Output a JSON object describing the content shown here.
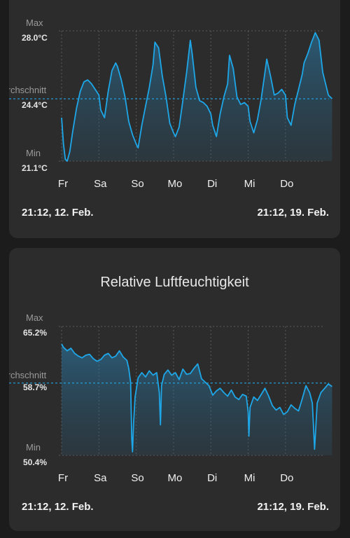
{
  "cards": {
    "temp": {
      "title": "",
      "max_label": "Max",
      "avg_label": "Durchschnitt",
      "min_label": "Min",
      "max_value": "28.0°C",
      "avg_value": "24.4°C",
      "min_value": "21.1°C",
      "start_time": "21:12,  12. Feb.",
      "end_time": "21:12,  19. Feb."
    },
    "hum": {
      "title": "Relative Luftfeuchtigkeit",
      "max_label": "Max",
      "avg_label": "Durchschnitt",
      "min_label": "Min",
      "max_value": "65.2%",
      "avg_value": "58.7%",
      "min_value": "50.4%",
      "start_time": "21:12,  12. Feb.",
      "end_time": "21:12,  19. Feb."
    }
  },
  "chart_data": [
    {
      "type": "area",
      "title": "",
      "unit": "°C",
      "x_ticks": [
        "Fr",
        "Sa",
        "So",
        "Mo",
        "Di",
        "Mi",
        "Do"
      ],
      "ylim": [
        21.1,
        28.0
      ],
      "max": 28.0,
      "avg": 24.4,
      "min": 21.1,
      "x_day": [
        0,
        0.05,
        0.1,
        0.15,
        0.22,
        0.3,
        0.4,
        0.5,
        0.6,
        0.7,
        0.8,
        0.9,
        1.0,
        1.05,
        1.15,
        1.25,
        1.35,
        1.45,
        1.5,
        1.6,
        1.7,
        1.8,
        1.9,
        2.0,
        2.05,
        2.15,
        2.25,
        2.35,
        2.45,
        2.5,
        2.6,
        2.7,
        2.8,
        2.9,
        3.0,
        3.05,
        3.15,
        3.25,
        3.35,
        3.45,
        3.5,
        3.6,
        3.7,
        3.8,
        3.9,
        4.0,
        4.05,
        4.15,
        4.25,
        4.35,
        4.45,
        4.5,
        4.6,
        4.7,
        4.8,
        4.9,
        5.0,
        5.05,
        5.15,
        5.25,
        5.35,
        5.45,
        5.5,
        5.6,
        5.7,
        5.8,
        5.9,
        6.0,
        6.05,
        6.15,
        6.25,
        6.35,
        6.45,
        6.5,
        6.6,
        6.7,
        6.8,
        6.9,
        7.0,
        7.15,
        7.25
      ],
      "y": [
        23.4,
        22.0,
        21.2,
        21.1,
        21.6,
        22.7,
        23.9,
        24.8,
        25.3,
        25.4,
        25.2,
        24.9,
        24.6,
        23.8,
        23.4,
        24.8,
        25.9,
        26.3,
        26.1,
        25.4,
        24.5,
        23.2,
        22.5,
        22.0,
        21.8,
        23.0,
        24.0,
        25.0,
        26.2,
        27.4,
        27.1,
        25.6,
        24.5,
        23.1,
        22.6,
        22.4,
        22.9,
        24.3,
        25.8,
        27.5,
        26.8,
        25.0,
        24.3,
        24.2,
        24.0,
        23.6,
        23.0,
        22.4,
        23.6,
        24.5,
        25.2,
        26.7,
        26.0,
        24.5,
        24.1,
        24.2,
        24.0,
        23.2,
        22.6,
        23.3,
        24.4,
        25.8,
        26.5,
        25.6,
        24.6,
        24.7,
        24.9,
        24.6,
        23.4,
        23.0,
        24.1,
        24.9,
        25.7,
        26.3,
        26.8,
        27.4,
        27.9,
        27.5,
        25.8,
        24.6,
        24.4
      ]
    },
    {
      "type": "area",
      "title": "Relative Luftfeuchtigkeit",
      "unit": "%",
      "x_ticks": [
        "Fr",
        "Sa",
        "So",
        "Mo",
        "Di",
        "Mi",
        "Do"
      ],
      "ylim": [
        50.4,
        65.2
      ],
      "max": 65.2,
      "avg": 58.7,
      "min": 50.4,
      "x_day": [
        0,
        0.05,
        0.15,
        0.25,
        0.35,
        0.45,
        0.55,
        0.65,
        0.75,
        0.85,
        0.95,
        1.05,
        1.15,
        1.25,
        1.35,
        1.45,
        1.55,
        1.65,
        1.75,
        1.8,
        1.85,
        1.88,
        1.9,
        1.93,
        1.97,
        2.05,
        2.15,
        2.25,
        2.35,
        2.45,
        2.55,
        2.62,
        2.65,
        2.68,
        2.75,
        2.85,
        2.95,
        3.05,
        3.15,
        3.25,
        3.35,
        3.45,
        3.55,
        3.65,
        3.75,
        3.85,
        3.95,
        4.05,
        4.15,
        4.25,
        4.35,
        4.45,
        4.55,
        4.65,
        4.75,
        4.85,
        4.95,
        5.0,
        5.02,
        5.05,
        5.15,
        5.25,
        5.35,
        5.45,
        5.55,
        5.65,
        5.75,
        5.85,
        5.95,
        6.05,
        6.15,
        6.25,
        6.35,
        6.45,
        6.55,
        6.65,
        6.72,
        6.75,
        6.78,
        6.85,
        6.95,
        7.05,
        7.15,
        7.25
      ],
      "y": [
        63.2,
        62.8,
        62.4,
        62.7,
        62.1,
        61.8,
        61.6,
        61.9,
        62.0,
        61.5,
        61.2,
        61.4,
        61.9,
        62.1,
        61.6,
        61.8,
        62.4,
        61.7,
        61.3,
        60.4,
        58.8,
        52.4,
        50.8,
        54.2,
        57.1,
        59.3,
        59.9,
        59.4,
        60.1,
        59.6,
        59.9,
        57.6,
        53.9,
        58.4,
        59.7,
        60.2,
        59.6,
        59.9,
        59.1,
        60.3,
        59.7,
        59.8,
        60.4,
        60.9,
        59.2,
        58.8,
        58.4,
        57.3,
        57.8,
        58.1,
        57.6,
        57.2,
        57.9,
        57.1,
        56.8,
        57.4,
        57.2,
        55.4,
        52.6,
        55.9,
        57.1,
        56.7,
        57.4,
        58.1,
        57.2,
        56.1,
        55.6,
        55.9,
        55.1,
        55.4,
        56.2,
        55.8,
        55.5,
        56.9,
        58.4,
        57.6,
        56.4,
        53.8,
        51.1,
        56.4,
        57.6,
        58.1,
        58.6,
        58.3
      ]
    }
  ]
}
